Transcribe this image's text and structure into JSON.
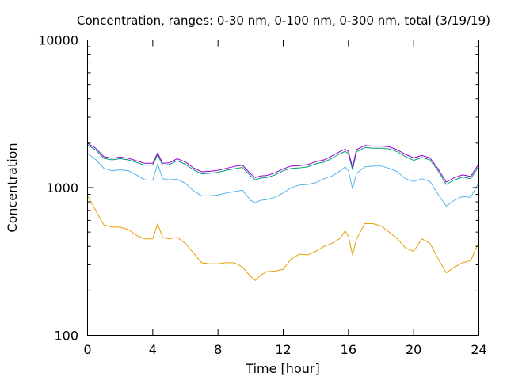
{
  "chart_data": {
    "type": "line",
    "title": "Concentration, ranges: 0-30 nm, 0-100 nm, 0-300 nm, total (3/19/19)",
    "xlabel": "Time [hour]",
    "ylabel": "Concentration",
    "xlim": [
      0,
      24
    ],
    "ylim": [
      100,
      10000
    ],
    "yscale": "log",
    "grid": false,
    "legend": "none",
    "x_ticks": [
      0,
      4,
      8,
      12,
      16,
      20,
      24
    ],
    "y_ticks": [
      100,
      1000,
      10000
    ],
    "x_tick_labels": [
      "0",
      "4",
      "8",
      "12",
      "16",
      "20",
      "24"
    ],
    "y_tick_labels": [
      "100",
      "1000",
      "10000"
    ],
    "series": [
      {
        "color": "#e69f00",
        "x": [
          0,
          0.5,
          1,
          1.5,
          2,
          2.5,
          3,
          3.5,
          4,
          4.3,
          4.6,
          5,
          5.5,
          6,
          6.5,
          7,
          7.5,
          8,
          8.5,
          9,
          9.5,
          10,
          10.3,
          10.6,
          11,
          11.5,
          12,
          12.5,
          13,
          13.5,
          14,
          14.5,
          15,
          15.5,
          15.8,
          16,
          16.25,
          16.5,
          17,
          17.5,
          18,
          18.5,
          19,
          19.5,
          20,
          20.5,
          21,
          21.5,
          22,
          22.5,
          23,
          23.5,
          24
        ],
        "y": [
          880,
          700,
          560,
          540,
          540,
          520,
          475,
          450,
          450,
          570,
          460,
          450,
          460,
          420,
          360,
          310,
          305,
          305,
          310,
          310,
          290,
          250,
          235,
          255,
          270,
          272,
          280,
          330,
          355,
          350,
          370,
          400,
          420,
          455,
          510,
          470,
          350,
          450,
          570,
          570,
          550,
          500,
          450,
          390,
          370,
          450,
          420,
          330,
          265,
          290,
          310,
          320,
          430
        ]
      },
      {
        "color": "#56b4e9",
        "x": [
          0,
          0.5,
          1,
          1.5,
          2,
          2.5,
          3,
          3.5,
          4,
          4.3,
          4.6,
          5,
          5.5,
          6,
          6.5,
          7,
          7.5,
          8,
          8.5,
          9,
          9.5,
          10,
          10.3,
          10.6,
          11,
          11.5,
          12,
          12.5,
          13,
          13.5,
          14,
          14.5,
          15,
          15.5,
          15.8,
          16,
          16.25,
          16.5,
          17,
          17.5,
          18,
          18.5,
          19,
          19.5,
          20,
          20.5,
          21,
          21.5,
          22,
          22.5,
          23,
          23.5,
          24
        ],
        "y": [
          1700,
          1550,
          1350,
          1300,
          1320,
          1300,
          1220,
          1130,
          1120,
          1450,
          1150,
          1130,
          1140,
          1070,
          950,
          880,
          880,
          890,
          920,
          940,
          960,
          820,
          790,
          820,
          830,
          860,
          920,
          1000,
          1040,
          1050,
          1080,
          1150,
          1200,
          1300,
          1380,
          1300,
          980,
          1250,
          1380,
          1400,
          1400,
          1350,
          1280,
          1150,
          1100,
          1150,
          1100,
          900,
          750,
          820,
          870,
          860,
          1080
        ]
      },
      {
        "color": "#009e73",
        "x": [
          0,
          0.5,
          1,
          1.5,
          2,
          2.5,
          3,
          3.5,
          4,
          4.3,
          4.6,
          5,
          5.5,
          6,
          6.5,
          7,
          7.5,
          8,
          8.5,
          9,
          9.5,
          10,
          10.3,
          10.6,
          11,
          11.5,
          12,
          12.5,
          13,
          13.5,
          14,
          14.5,
          15,
          15.5,
          15.8,
          16,
          16.25,
          16.5,
          17,
          17.5,
          18,
          18.5,
          19,
          19.5,
          20,
          20.5,
          21,
          21.5,
          22,
          22.5,
          23,
          23.5,
          24
        ],
        "y": [
          1950,
          1800,
          1580,
          1540,
          1570,
          1540,
          1480,
          1420,
          1420,
          1670,
          1420,
          1430,
          1520,
          1440,
          1320,
          1240,
          1250,
          1270,
          1310,
          1340,
          1370,
          1200,
          1130,
          1160,
          1170,
          1220,
          1300,
          1350,
          1360,
          1380,
          1450,
          1490,
          1580,
          1700,
          1760,
          1700,
          1320,
          1750,
          1870,
          1850,
          1850,
          1830,
          1750,
          1620,
          1530,
          1600,
          1540,
          1300,
          1050,
          1130,
          1180,
          1150,
          1400
        ]
      },
      {
        "color": "#9400d3",
        "x": [
          0,
          0.5,
          1,
          1.5,
          2,
          2.5,
          3,
          3.5,
          4,
          4.3,
          4.6,
          5,
          5.5,
          6,
          6.5,
          7,
          7.5,
          8,
          8.5,
          9,
          9.5,
          10,
          10.3,
          10.6,
          11,
          11.5,
          12,
          12.5,
          13,
          13.5,
          14,
          14.5,
          15,
          15.5,
          15.8,
          16,
          16.25,
          16.5,
          17,
          17.5,
          18,
          18.5,
          19,
          19.5,
          20,
          20.5,
          21,
          21.5,
          22,
          22.5,
          23,
          23.5,
          24
        ],
        "y": [
          2000,
          1850,
          1620,
          1580,
          1610,
          1580,
          1520,
          1460,
          1460,
          1720,
          1460,
          1470,
          1570,
          1490,
          1360,
          1280,
          1290,
          1310,
          1350,
          1390,
          1420,
          1240,
          1170,
          1200,
          1210,
          1260,
          1340,
          1400,
          1410,
          1430,
          1500,
          1540,
          1640,
          1760,
          1820,
          1760,
          1370,
          1810,
          1930,
          1910,
          1910,
          1890,
          1800,
          1680,
          1590,
          1650,
          1590,
          1340,
          1090,
          1170,
          1220,
          1190,
          1450
        ]
      }
    ]
  }
}
